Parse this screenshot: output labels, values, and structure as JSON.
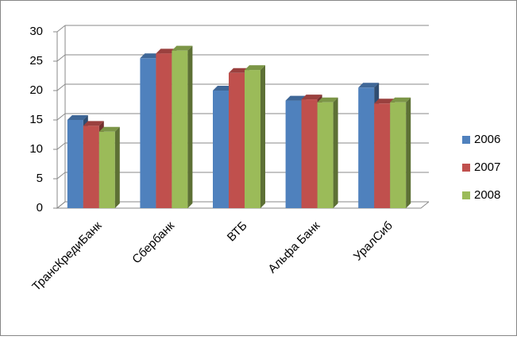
{
  "chart_data": {
    "type": "bar3d",
    "categories": [
      "ТрансКредиБанк",
      "Сбербанк",
      "ВТБ",
      "Альфа Банк",
      "УралСиб"
    ],
    "series": [
      {
        "name": "2006",
        "color": "#4f81bd",
        "values": [
          15,
          25.5,
          20,
          18.3,
          20.5
        ]
      },
      {
        "name": "2007",
        "color": "#c0504d",
        "values": [
          14,
          26.3,
          23,
          18.5,
          17.8
        ]
      },
      {
        "name": "2008",
        "color": "#9bbb59",
        "values": [
          13,
          26.8,
          23.5,
          18,
          18
        ]
      }
    ],
    "ylim": [
      0,
      30
    ],
    "yticks": [
      0,
      5,
      10,
      15,
      20,
      25,
      30
    ],
    "grid": true,
    "legend": "right"
  }
}
